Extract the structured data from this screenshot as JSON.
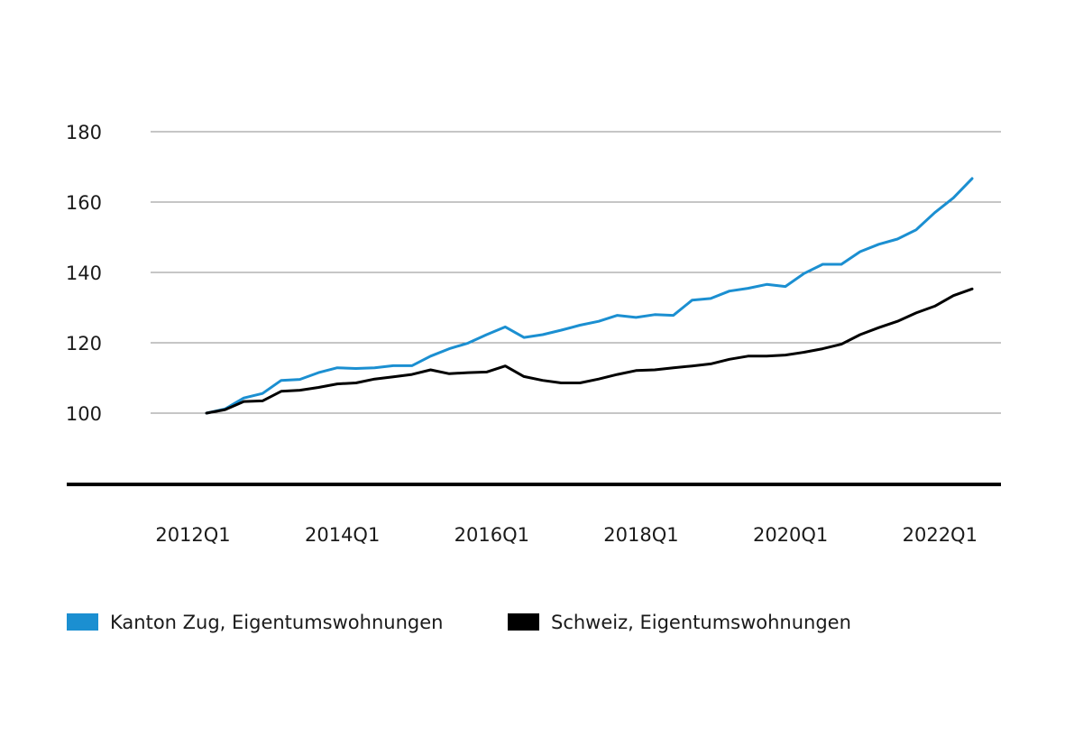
{
  "chart_data": {
    "type": "line",
    "title": "",
    "xlabel": "",
    "ylabel": "",
    "ylim": [
      80,
      180
    ],
    "y_ticks": [
      "180",
      "160",
      "140",
      "120",
      "100"
    ],
    "y_tick_values": [
      180,
      160,
      140,
      120,
      100
    ],
    "x_tick_labels": [
      "2012Q1",
      "2014Q1",
      "2016Q1",
      "2018Q1",
      "2020Q1",
      "2022Q1"
    ],
    "grid": true,
    "legend_position": "bottom",
    "x": [
      "2012Q1",
      "2012Q2",
      "2012Q3",
      "2012Q4",
      "2013Q1",
      "2013Q2",
      "2013Q3",
      "2013Q4",
      "2014Q1",
      "2014Q2",
      "2014Q3",
      "2014Q4",
      "2015Q1",
      "2015Q2",
      "2015Q3",
      "2015Q4",
      "2016Q1",
      "2016Q2",
      "2016Q3",
      "2016Q4",
      "2017Q1",
      "2017Q2",
      "2017Q3",
      "2017Q4",
      "2018Q1",
      "2018Q2",
      "2018Q3",
      "2018Q4",
      "2019Q1",
      "2019Q2",
      "2019Q3",
      "2019Q4",
      "2020Q1",
      "2020Q2",
      "2020Q3",
      "2020Q4",
      "2021Q1",
      "2021Q2",
      "2021Q3",
      "2021Q4",
      "2022Q1",
      "2022Q2"
    ],
    "series": [
      {
        "name": "Kanton Zug, Eigentumswohnungen",
        "color": "#1b8fd1",
        "values": [
          100.0,
          101.2,
          104.3,
          105.6,
          109.3,
          109.6,
          111.5,
          112.9,
          112.7,
          112.9,
          113.5,
          113.5,
          116.2,
          118.3,
          119.9,
          122.3,
          124.5,
          121.5,
          122.3,
          123.6,
          125.0,
          126.1,
          127.8,
          127.2,
          128.0,
          127.8,
          132.1,
          132.6,
          134.7,
          135.5,
          136.6,
          136.0,
          139.7,
          142.3,
          142.3,
          145.9,
          148.0,
          149.5,
          152.1,
          157.0,
          161.2,
          166.7
        ]
      },
      {
        "name": "Schweiz, Eigentumswohnungen",
        "color": "#000000",
        "values": [
          100.0,
          101.0,
          103.3,
          103.5,
          106.2,
          106.5,
          107.3,
          108.3,
          108.6,
          109.7,
          110.3,
          111.0,
          112.3,
          111.2,
          111.5,
          111.7,
          113.4,
          110.4,
          109.3,
          108.6,
          108.6,
          109.7,
          111.0,
          112.1,
          112.3,
          112.9,
          113.4,
          114.0,
          115.3,
          116.2,
          116.2,
          116.5,
          117.3,
          118.3,
          119.6,
          122.3,
          124.3,
          126.1,
          128.5,
          130.4,
          133.4,
          135.3
        ]
      }
    ]
  }
}
